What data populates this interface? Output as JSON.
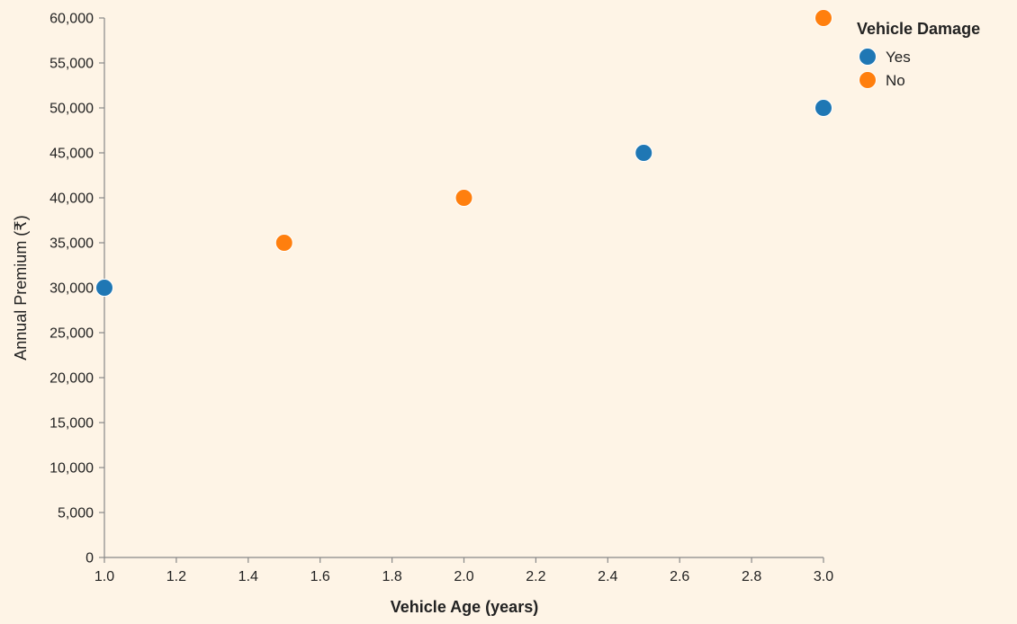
{
  "chart_data": {
    "type": "scatter",
    "title": "",
    "xlabel": "Vehicle Age (years)",
    "ylabel": "Annual Premium (₹)",
    "xlim": [
      1.0,
      3.0
    ],
    "ylim": [
      0,
      60000
    ],
    "x_ticks": [
      1.0,
      1.2,
      1.4,
      1.6,
      1.8,
      2.0,
      2.2,
      2.4,
      2.6,
      2.8,
      3.0
    ],
    "y_ticks": [
      0,
      5000,
      10000,
      15000,
      20000,
      25000,
      30000,
      35000,
      40000,
      45000,
      50000,
      55000,
      60000
    ],
    "x_tick_labels": [
      "1.0",
      "1.2",
      "1.4",
      "1.6",
      "1.8",
      "2.0",
      "2.2",
      "2.4",
      "2.6",
      "2.8",
      "3.0"
    ],
    "y_tick_labels": [
      "0",
      "5,000",
      "10,000",
      "15,000",
      "20,000",
      "25,000",
      "30,000",
      "35,000",
      "40,000",
      "45,000",
      "50,000",
      "55,000",
      "60,000"
    ],
    "grid": false,
    "legend": {
      "title": "Vehicle Damage",
      "placement": "top-right"
    },
    "series": [
      {
        "name": "Yes",
        "color": "#1f77b4",
        "points": [
          {
            "x": 1.0,
            "y": 30000
          },
          {
            "x": 2.5,
            "y": 45000
          },
          {
            "x": 3.0,
            "y": 50000
          }
        ]
      },
      {
        "name": "No",
        "color": "#ff7f0e",
        "points": [
          {
            "x": 1.5,
            "y": 35000
          },
          {
            "x": 2.0,
            "y": 40000
          },
          {
            "x": 3.0,
            "y": 60000
          }
        ]
      }
    ]
  }
}
